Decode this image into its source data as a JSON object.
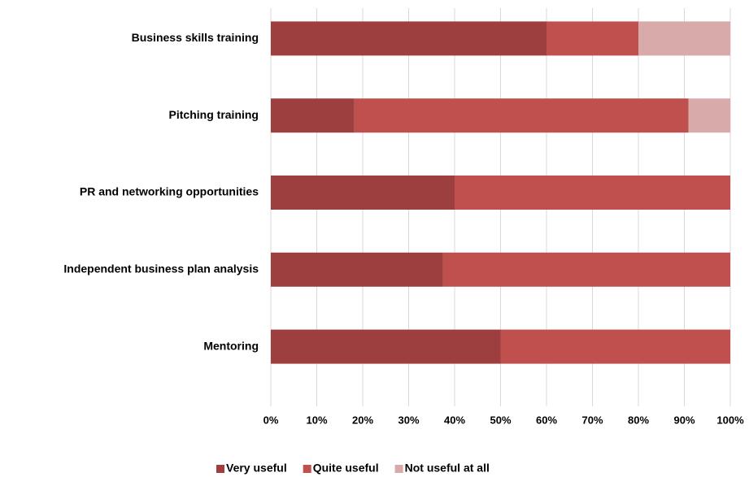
{
  "chart_data": {
    "type": "stacked_barh",
    "categories": [
      "Business skills training",
      "Pitching training",
      "PR and networking opportunities",
      "Independent business plan analysis",
      "Mentoring"
    ],
    "series": [
      {
        "name": "Very useful",
        "color": "#9e3f3f",
        "values": [
          60,
          18.2,
          40,
          37.5,
          50
        ]
      },
      {
        "name": "Quite useful",
        "color": "#c0504d",
        "values": [
          20,
          72.7,
          60,
          62.5,
          50
        ]
      },
      {
        "name": "Not useful at all",
        "color": "#d9aaaa",
        "values": [
          20,
          9.1,
          0,
          0,
          0
        ]
      }
    ],
    "xlim": [
      0,
      100
    ],
    "xticks": [
      {
        "value": 0,
        "label": "0%"
      },
      {
        "value": 10,
        "label": "10%"
      },
      {
        "value": 20,
        "label": "20%"
      },
      {
        "value": 30,
        "label": "30%"
      },
      {
        "value": 40,
        "label": "40%"
      },
      {
        "value": 50,
        "label": "50%"
      },
      {
        "value": 60,
        "label": "60%"
      },
      {
        "value": 70,
        "label": "70%"
      },
      {
        "value": 80,
        "label": "80%"
      },
      {
        "value": 90,
        "label": "90%"
      },
      {
        "value": 100,
        "label": "100%"
      }
    ],
    "grid": true,
    "legend": "bottom"
  }
}
